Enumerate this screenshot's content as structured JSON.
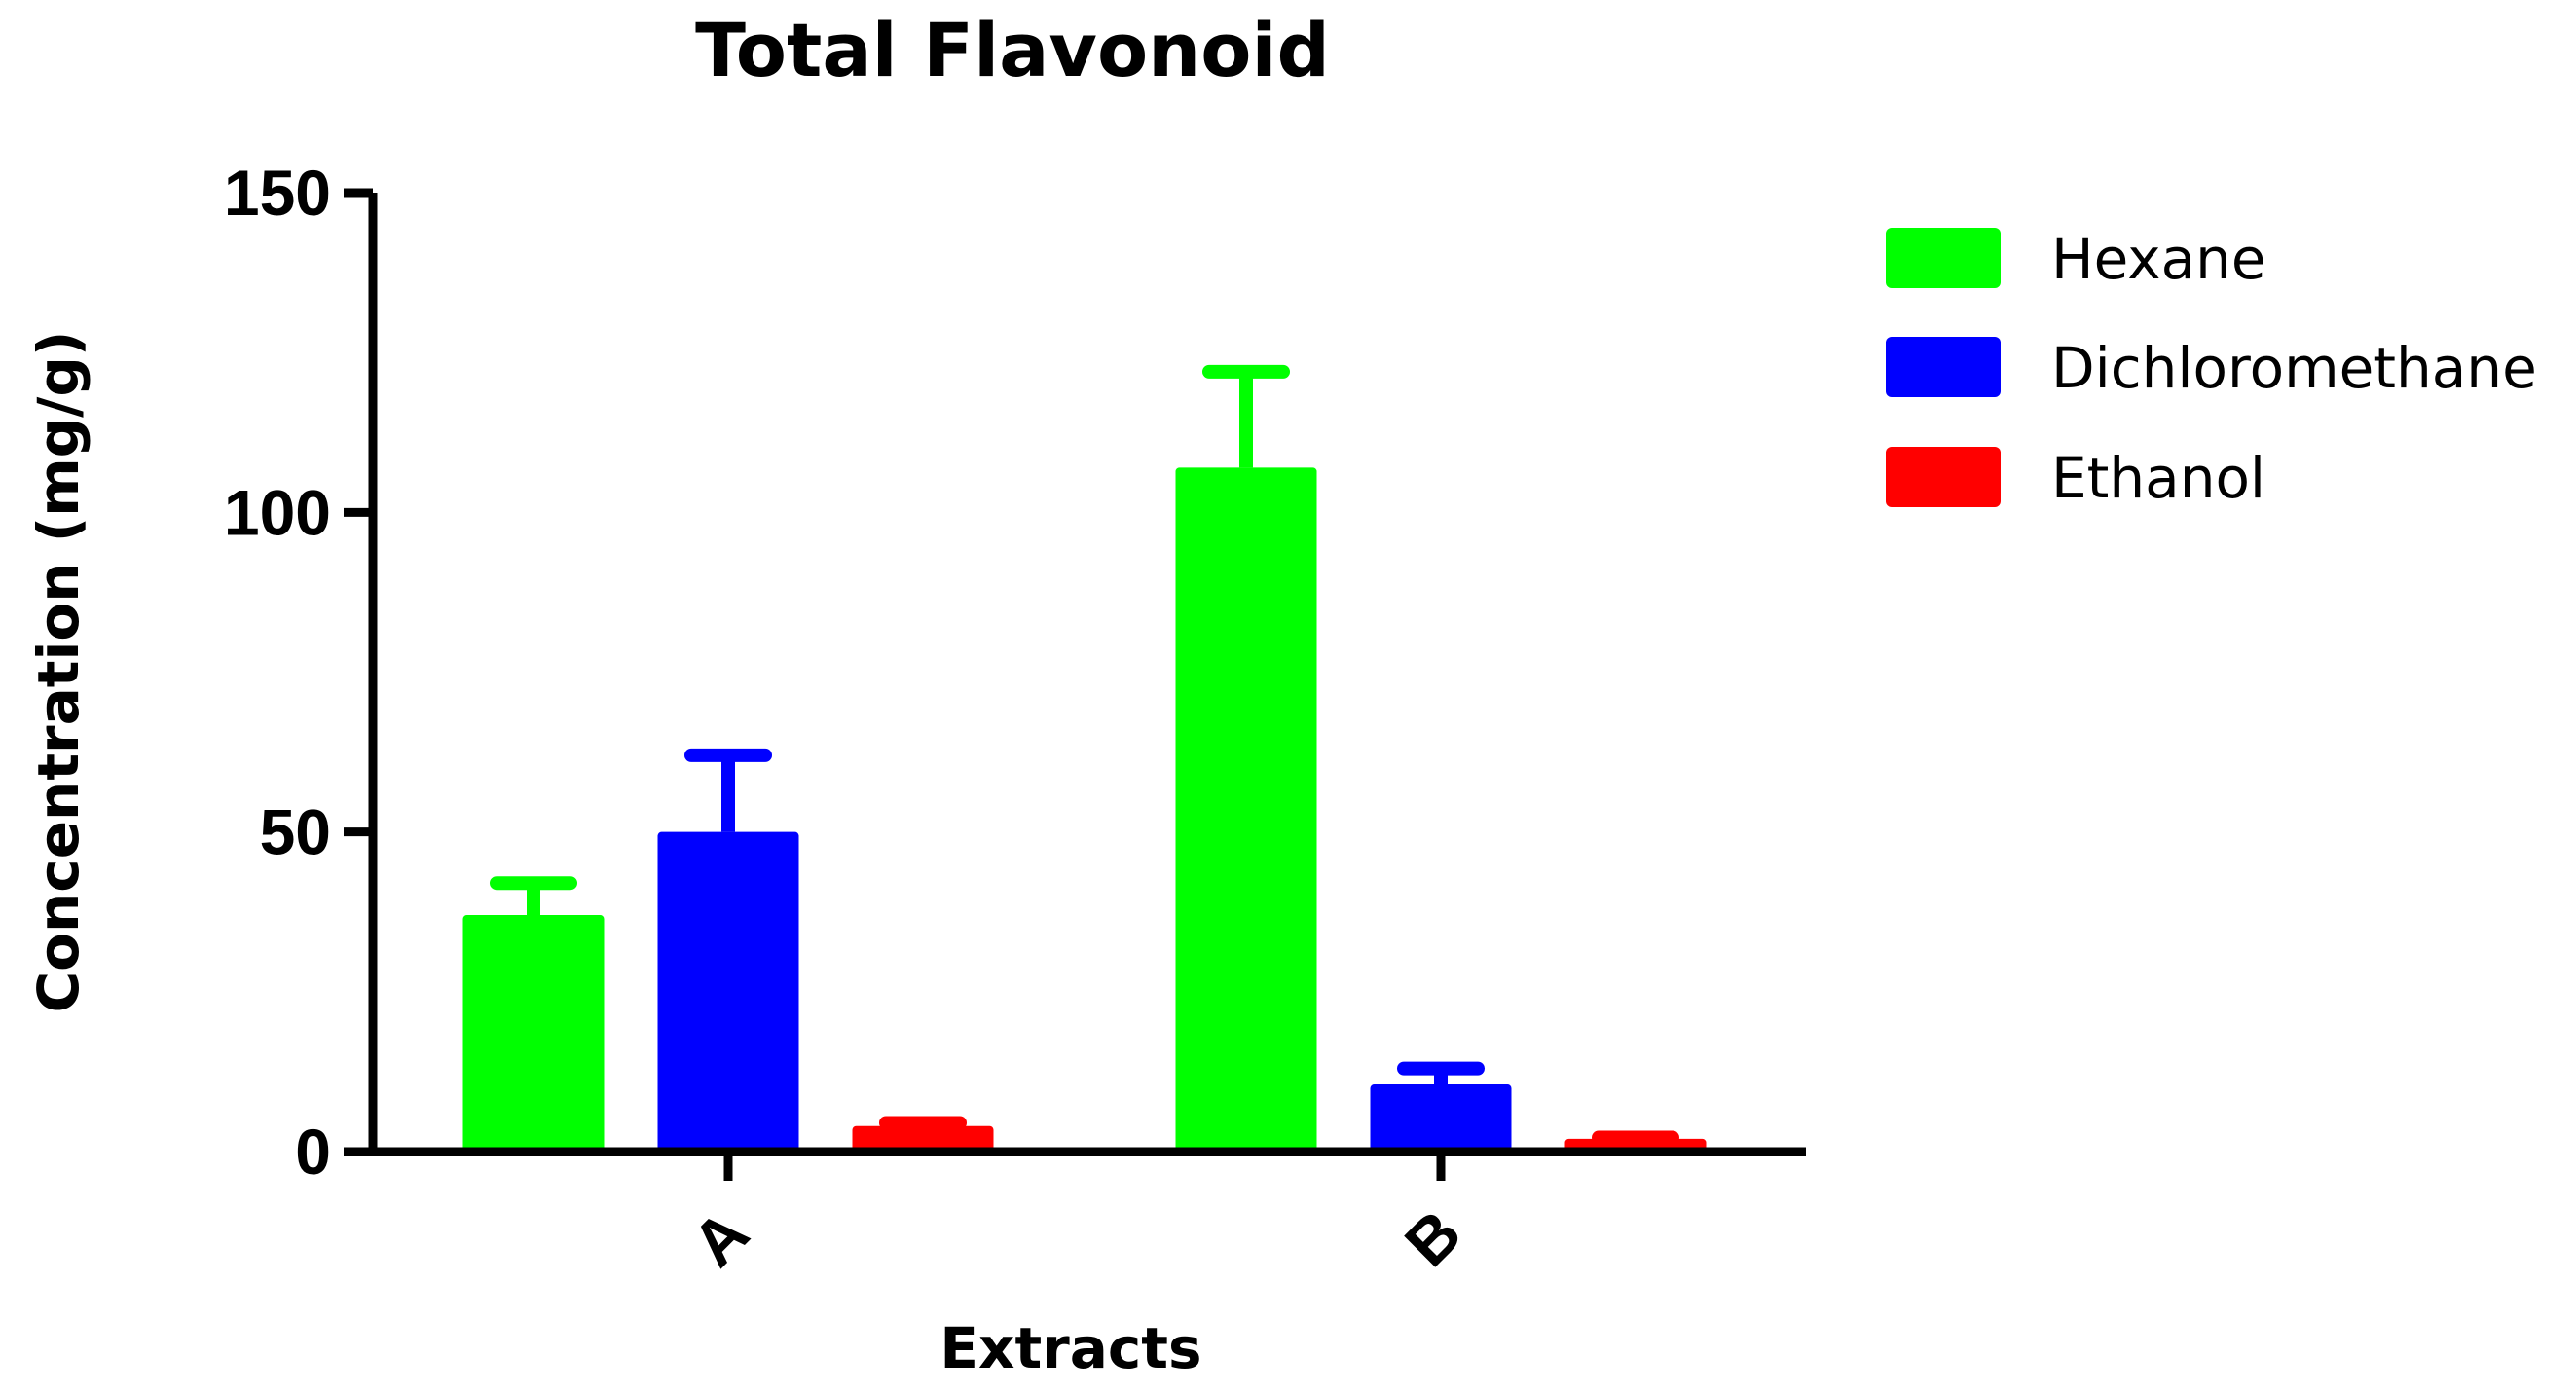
{
  "chart_data": {
    "type": "bar",
    "title": "Total Flavonoid",
    "xlabel": "Extracts",
    "ylabel": "Concentration (mg/g)",
    "ylim": [
      0,
      150
    ],
    "yticks": [
      0,
      50,
      100,
      150
    ],
    "ytick_labels": [
      "0",
      "50",
      "100",
      "150"
    ],
    "categories": [
      "A",
      "B"
    ],
    "grid": false,
    "legend_position": "right",
    "series": [
      {
        "name": "Hexane",
        "color": "#00ff00",
        "values": [
          37,
          107
        ],
        "errors": [
          5,
          15
        ]
      },
      {
        "name": "Dichloromethane",
        "color": "#0000ff",
        "values": [
          50,
          10.5
        ],
        "errors": [
          12,
          2.5
        ]
      },
      {
        "name": "Ethanol",
        "color": "#ff0000",
        "values": [
          4,
          2
        ],
        "errors": [
          0.5,
          0.2
        ]
      }
    ]
  }
}
